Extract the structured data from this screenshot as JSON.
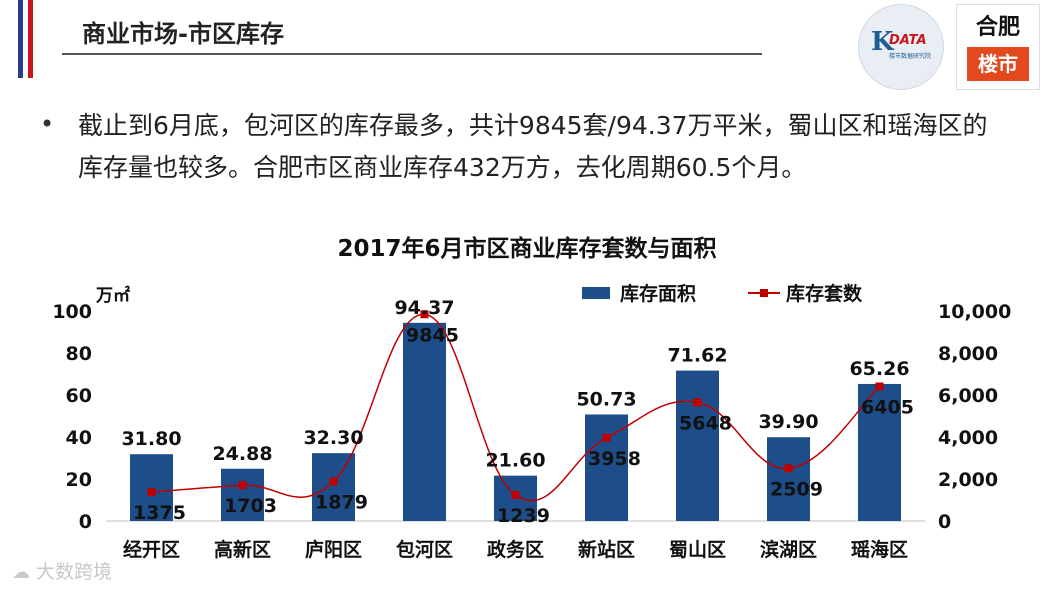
{
  "header": {
    "title": "商业市场-市区库存",
    "stripe_colors": [
      "#243f8f",
      "#ffffff",
      "#c8161d"
    ]
  },
  "logos": {
    "kdata_letter": "K",
    "kdata_text": "DATA",
    "kdata_sub": "楼市数据研究院",
    "city_top": "合肥",
    "city_bottom": "楼市"
  },
  "bullet": {
    "text": "截止到6月底，包河区的库存最多，共计9845套/94.37万平米，蜀山区和瑶海区的库存量也较多。合肥市区商业库存432万方，去化周期60.5个月。"
  },
  "watermark": {
    "icon": "cloud-icon",
    "text": "大数跨境"
  },
  "chart_data": {
    "type": "bar",
    "title": "2017年6月市区商业库存套数与面积",
    "ylabel": "万㎡",
    "categories": [
      "经开区",
      "高新区",
      "庐阳区",
      "包河区",
      "政务区",
      "新站区",
      "蜀山区",
      "滨湖区",
      "瑶海区"
    ],
    "ylim": [
      0,
      100
    ],
    "y_ticks": [
      "0",
      "20",
      "40",
      "60",
      "80",
      "100"
    ],
    "y2lim": [
      0,
      10000
    ],
    "y2_ticks": [
      "0",
      "2,000",
      "4,000",
      "6,000",
      "8,000",
      "10,000"
    ],
    "legend_position": "top-right",
    "series": [
      {
        "name": "库存面积",
        "type": "bar",
        "axis": "left",
        "color": "#1d4e89",
        "values": [
          31.8,
          24.88,
          32.3,
          94.37,
          21.6,
          50.73,
          71.62,
          39.9,
          65.26
        ],
        "labels": [
          "31.80",
          "24.88",
          "32.30",
          "94.37",
          "21.60",
          "50.73",
          "71.62",
          "39.90",
          "65.26"
        ]
      },
      {
        "name": "库存套数",
        "type": "line",
        "axis": "right",
        "color": "#c00000",
        "values": [
          1375,
          1703,
          1879,
          9845,
          1239,
          3958,
          5648,
          2509,
          6405
        ],
        "labels": [
          "1375",
          "1703",
          "1879",
          "9845",
          "1239",
          "3958",
          "5648",
          "2509",
          "6405"
        ]
      }
    ]
  }
}
